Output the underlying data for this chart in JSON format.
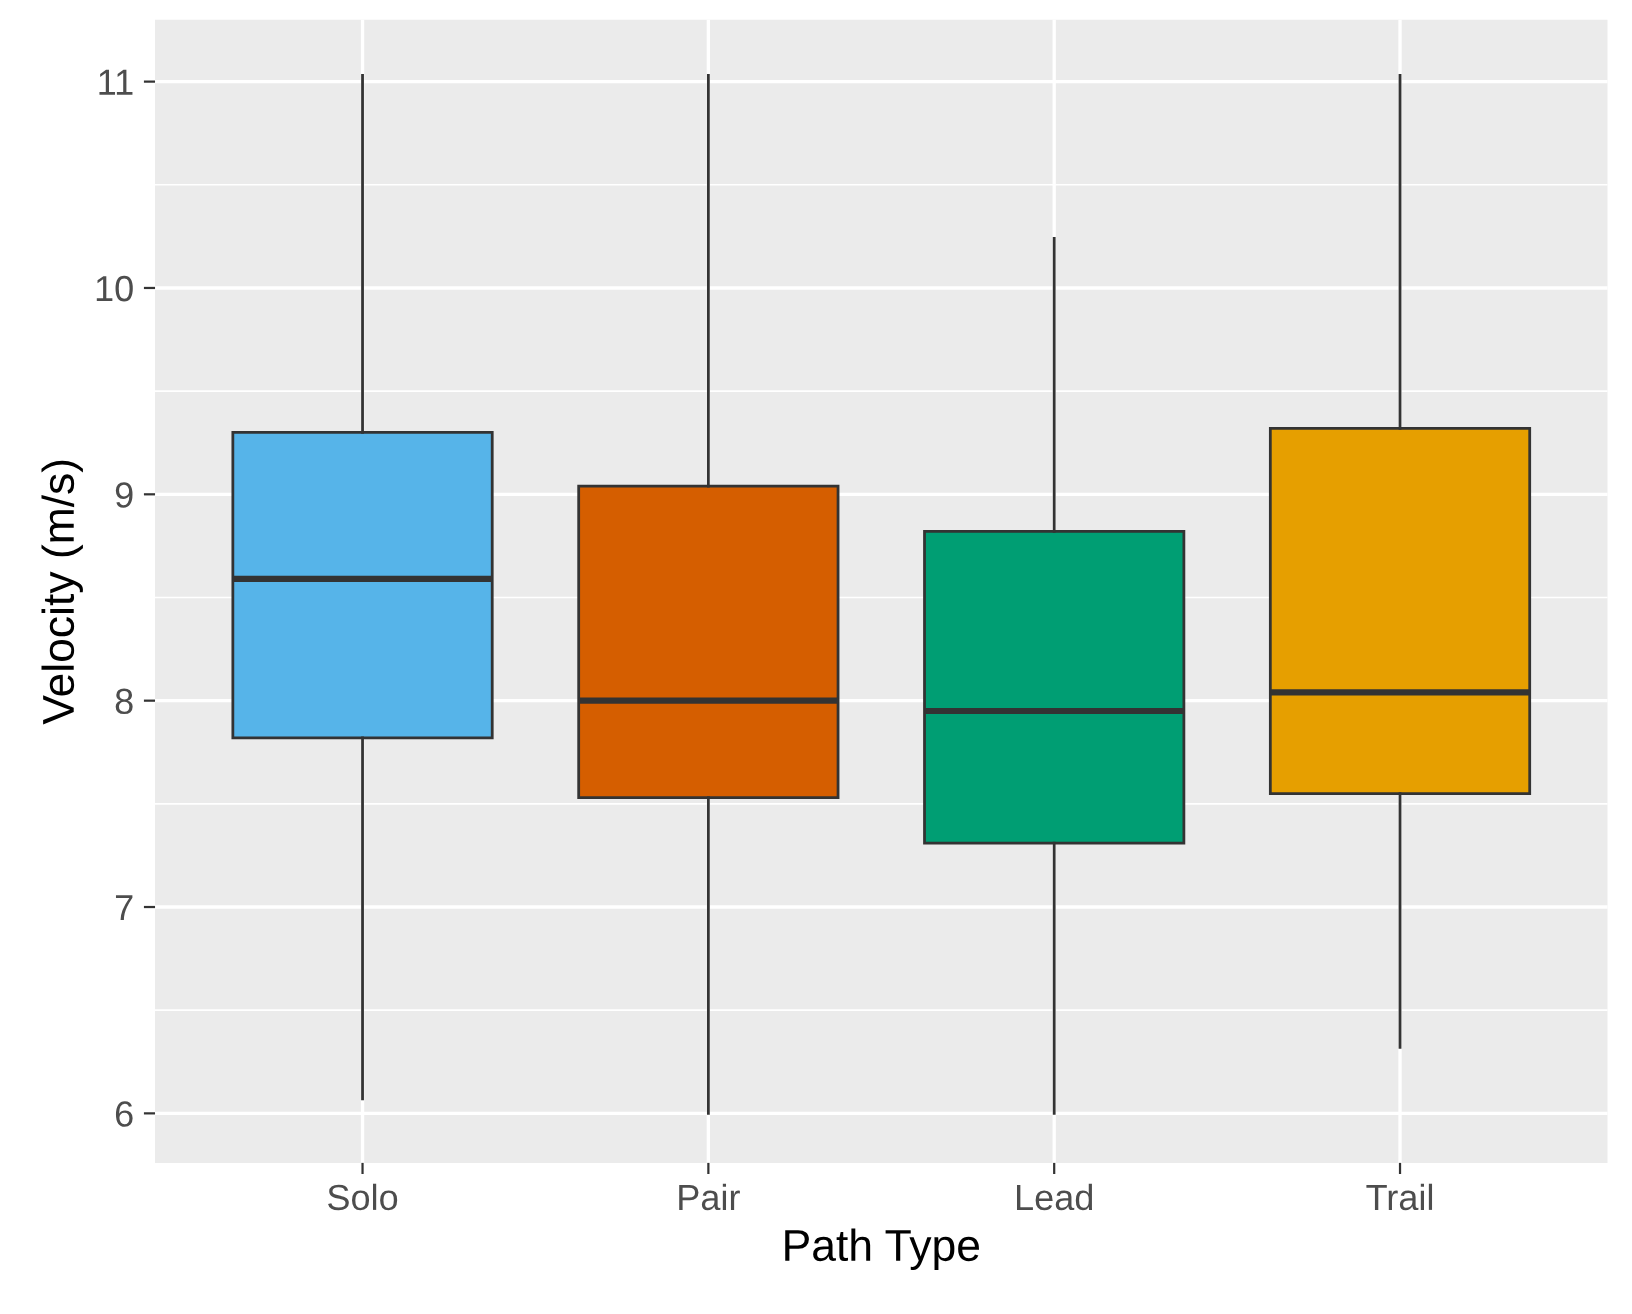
{
  "chart_data": {
    "type": "box",
    "xlabel": "Path Type",
    "ylabel": "Velocity (m/s)",
    "categories": [
      "Solo",
      "Pair",
      "Lead",
      "Trail"
    ],
    "colors": [
      "#56b4e9",
      "#d55e00",
      "#009e73",
      "#e69f00"
    ],
    "boxes": [
      {
        "low": 6.07,
        "q1": 7.82,
        "median": 8.59,
        "q3": 9.3,
        "high": 11.03
      },
      {
        "low": 6.0,
        "q1": 7.53,
        "median": 8.0,
        "q3": 9.04,
        "high": 11.03
      },
      {
        "low": 6.0,
        "q1": 7.31,
        "median": 7.95,
        "q3": 8.82,
        "high": 10.24
      },
      {
        "low": 6.32,
        "q1": 7.55,
        "median": 8.04,
        "q3": 9.32,
        "high": 11.03
      }
    ],
    "ylim": [
      5.76,
      11.3
    ],
    "yticks": [
      6,
      7,
      8,
      9,
      10,
      11
    ],
    "grid": true
  }
}
